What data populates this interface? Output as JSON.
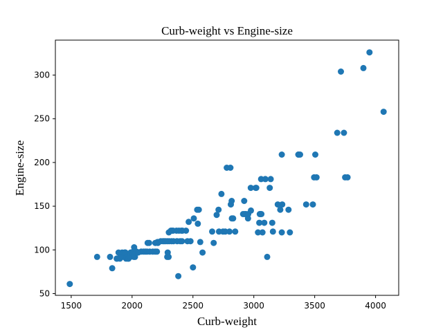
{
  "chart_data": {
    "type": "scatter",
    "title": "Curb-weight vs Engine-size",
    "xlabel": "Curb-weight",
    "ylabel": "Engine-size",
    "xlim": [
      1370,
      4190
    ],
    "ylim": [
      48,
      340
    ],
    "xticks": [
      1500,
      2000,
      2500,
      3000,
      3500,
      4000
    ],
    "yticks": [
      50,
      100,
      150,
      200,
      250,
      300
    ],
    "grid": false,
    "marker_color": "#1f77b4",
    "points": [
      [
        1488,
        61
      ],
      [
        1713,
        92
      ],
      [
        1819,
        92
      ],
      [
        1837,
        79
      ],
      [
        1874,
        90
      ],
      [
        1876,
        90
      ],
      [
        1889,
        97
      ],
      [
        1900,
        90
      ],
      [
        1905,
        92
      ],
      [
        1909,
        92
      ],
      [
        1918,
        97
      ],
      [
        1920,
        92
      ],
      [
        1938,
        97
      ],
      [
        1940,
        92
      ],
      [
        1944,
        97
      ],
      [
        1945,
        97
      ],
      [
        1950,
        92
      ],
      [
        1951,
        90
      ],
      [
        1956,
        92
      ],
      [
        1967,
        90
      ],
      [
        1971,
        90
      ],
      [
        1985,
        92
      ],
      [
        1989,
        97
      ],
      [
        1990,
        97
      ],
      [
        2004,
        97
      ],
      [
        2010,
        98
      ],
      [
        2015,
        92
      ],
      [
        2017,
        103
      ],
      [
        2024,
        92
      ],
      [
        2028,
        97
      ],
      [
        2037,
        98
      ],
      [
        2050,
        97
      ],
      [
        2075,
        98
      ],
      [
        2095,
        98
      ],
      [
        2109,
        98
      ],
      [
        2122,
        98
      ],
      [
        2128,
        108
      ],
      [
        2140,
        108
      ],
      [
        2145,
        98
      ],
      [
        2170,
        98
      ],
      [
        2190,
        98
      ],
      [
        2191,
        108
      ],
      [
        2204,
        98
      ],
      [
        2209,
        109
      ],
      [
        2212,
        108
      ],
      [
        2236,
        110
      ],
      [
        2254,
        110
      ],
      [
        2264,
        110
      ],
      [
        2275,
        110
      ],
      [
        2289,
        92
      ],
      [
        2290,
        110
      ],
      [
        2293,
        97
      ],
      [
        2300,
        92
      ],
      [
        2302,
        120
      ],
      [
        2304,
        110
      ],
      [
        2319,
        122
      ],
      [
        2324,
        110
      ],
      [
        2328,
        122
      ],
      [
        2337,
        122
      ],
      [
        2340,
        110
      ],
      [
        2365,
        122
      ],
      [
        2370,
        110
      ],
      [
        2380,
        70
      ],
      [
        2385,
        122
      ],
      [
        2395,
        110
      ],
      [
        2405,
        122
      ],
      [
        2410,
        110
      ],
      [
        2414,
        122
      ],
      [
        2443,
        122
      ],
      [
        2455,
        110
      ],
      [
        2465,
        132
      ],
      [
        2480,
        110
      ],
      [
        2500,
        80
      ],
      [
        2507,
        136
      ],
      [
        2535,
        146
      ],
      [
        2540,
        130
      ],
      [
        2548,
        146
      ],
      [
        2560,
        109
      ],
      [
        2579,
        97
      ],
      [
        2670,
        108
      ],
      [
        2658,
        121
      ],
      [
        2695,
        140
      ],
      [
        2710,
        146
      ],
      [
        2714,
        121
      ],
      [
        2734,
        164
      ],
      [
        2747,
        121
      ],
      [
        2765,
        121
      ],
      [
        2778,
        194
      ],
      [
        2800,
        121
      ],
      [
        2808,
        194
      ],
      [
        2811,
        152
      ],
      [
        2818,
        156
      ],
      [
        2820,
        136
      ],
      [
        2830,
        136
      ],
      [
        2847,
        121
      ],
      [
        2912,
        141
      ],
      [
        2921,
        156
      ],
      [
        2926,
        141
      ],
      [
        2935,
        141
      ],
      [
        2952,
        136
      ],
      [
        2954,
        141
      ],
      [
        2976,
        145
      ],
      [
        2975,
        171
      ],
      [
        3016,
        171
      ],
      [
        3020,
        171
      ],
      [
        3034,
        120
      ],
      [
        3045,
        131
      ],
      [
        3049,
        141
      ],
      [
        3053,
        141
      ],
      [
        3060,
        181
      ],
      [
        3062,
        141
      ],
      [
        3071,
        120
      ],
      [
        3086,
        131
      ],
      [
        3095,
        181
      ],
      [
        3110,
        92
      ],
      [
        3131,
        171
      ],
      [
        3139,
        181
      ],
      [
        3151,
        131
      ],
      [
        3157,
        121
      ],
      [
        3197,
        152
      ],
      [
        3217,
        146
      ],
      [
        3230,
        209
      ],
      [
        3233,
        152
      ],
      [
        3230,
        120
      ],
      [
        3285,
        146
      ],
      [
        3296,
        120
      ],
      [
        3366,
        209
      ],
      [
        3366,
        209
      ],
      [
        3380,
        209
      ],
      [
        3505,
        209
      ],
      [
        3430,
        152
      ],
      [
        3485,
        152
      ],
      [
        3495,
        183
      ],
      [
        3515,
        183
      ],
      [
        3685,
        234
      ],
      [
        3740,
        234
      ],
      [
        3715,
        304
      ],
      [
        3750,
        183
      ],
      [
        3770,
        183
      ],
      [
        3900,
        308
      ],
      [
        3950,
        326
      ],
      [
        4066,
        258
      ]
    ]
  }
}
